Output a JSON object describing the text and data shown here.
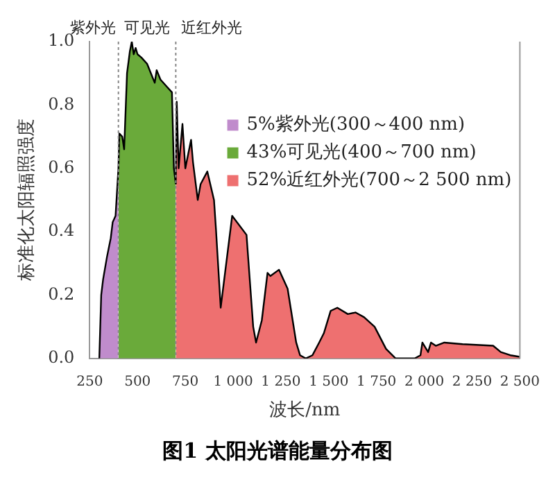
{
  "chart_data": {
    "type": "area",
    "title": "图1  太阳光谱能量分布图",
    "xlabel": "波长/nm",
    "ylabel": "标准化太阳辐照强度",
    "xlim": [
      250,
      2500
    ],
    "ylim": [
      0,
      1.0
    ],
    "xticks": [
      250,
      500,
      750,
      {
        "value": 1000,
        "label": "1 000"
      },
      {
        "value": 1250,
        "label": "1 250"
      },
      {
        "value": 1500,
        "label": "1 500"
      },
      {
        "value": 1750,
        "label": "1 750"
      },
      {
        "value": 2000,
        "label": "2 000"
      },
      {
        "value": 2250,
        "label": "2 250"
      },
      {
        "value": 2500,
        "label": "2 500"
      }
    ],
    "yticks": [
      {
        "value": 0,
        "label": "0.0"
      },
      {
        "value": 0.2,
        "label": "0.2"
      },
      {
        "value": 0.4,
        "label": "0.4"
      },
      {
        "value": 0.6,
        "label": "0.6"
      },
      {
        "value": 0.8,
        "label": "0.8"
      },
      {
        "value": 1.0,
        "label": "1.0"
      }
    ],
    "grid": false,
    "legend": "right",
    "ref_lines": [
      {
        "axis": "x",
        "value": 400,
        "line_style": "dotted",
        "color": "#888888"
      },
      {
        "axis": "x",
        "value": 700,
        "line_style": "dotted",
        "color": "#888888"
      }
    ],
    "annotations": [
      "紫外光",
      "可见光",
      "近红外光"
    ],
    "series": [
      {
        "name": "5%紫外光(300～400 nm)",
        "color": "#c08ccc",
        "x": [
          300,
          310,
          320,
          340,
          360,
          370,
          385,
          395,
          400
        ],
        "values": [
          0,
          0.2,
          0.25,
          0.32,
          0.38,
          0.43,
          0.45,
          0.55,
          0.6
        ]
      },
      {
        "name": "43%可见光(400～700 nm)",
        "color": "#6aaa3a",
        "x": [
          400,
          405,
          420,
          430,
          445,
          460,
          470,
          480,
          490,
          500,
          520,
          550,
          570,
          590,
          600,
          620,
          650,
          680,
          690,
          700
        ],
        "values": [
          0.6,
          0.71,
          0.7,
          0.66,
          0.9,
          0.97,
          1.0,
          0.96,
          0.98,
          0.96,
          0.95,
          0.93,
          0.9,
          0.87,
          0.91,
          0.88,
          0.86,
          0.84,
          0.6,
          0.55
        ]
      },
      {
        "name": "52%近红外光(700～2 500 nm)",
        "color": "#ee7070",
        "x": [
          700,
          705,
          715,
          735,
          750,
          780,
          790,
          815,
          830,
          865,
          900,
          910,
          935,
          995,
          1070,
          1105,
          1120,
          1150,
          1180,
          1195,
          1240,
          1285,
          1330,
          1350,
          1380,
          1415,
          1450,
          1475,
          1510,
          1545,
          1600,
          1640,
          1685,
          1740,
          1800,
          1850,
          1950,
          1980,
          1990,
          2020,
          2035,
          2060,
          2105,
          2200,
          2360,
          2400,
          2450,
          2500
        ],
        "values": [
          0.55,
          0.81,
          0.6,
          0.74,
          0.6,
          0.69,
          0.62,
          0.5,
          0.55,
          0.59,
          0.5,
          0.41,
          0.16,
          0.45,
          0.39,
          0.1,
          0.05,
          0.12,
          0.27,
          0.26,
          0.28,
          0.22,
          0.05,
          0.01,
          0,
          0.01,
          0.05,
          0.08,
          0.15,
          0.16,
          0.14,
          0.145,
          0.13,
          0.1,
          0.03,
          0,
          0,
          0.01,
          0.05,
          0.02,
          0.05,
          0.04,
          0.05,
          0.045,
          0.04,
          0.02,
          0.01,
          0.005
        ]
      }
    ]
  }
}
